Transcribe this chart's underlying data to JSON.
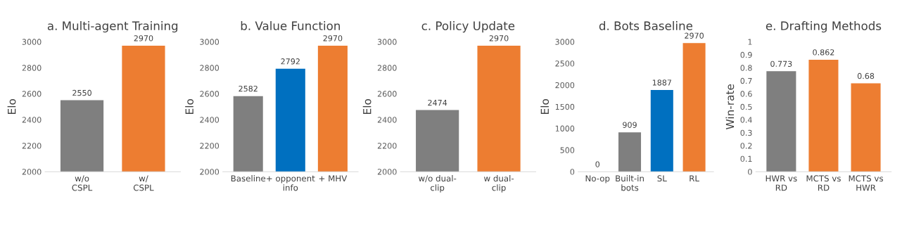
{
  "chart_data": [
    {
      "type": "bar",
      "title": "a. Multi-agent Training",
      "ylabel": "Elo",
      "categories": [
        "w/o\nCSPL",
        "w/\nCSPL"
      ],
      "values": [
        2550,
        2970
      ],
      "colors": [
        "#7f7f7f",
        "#ed7d31"
      ],
      "ylim": [
        2000,
        3000
      ],
      "yticks": [
        2000,
        2200,
        2400,
        2600,
        2800,
        3000
      ],
      "data_labels": true
    },
    {
      "type": "bar",
      "title": "b. Value Function",
      "ylabel": "Elo",
      "categories": [
        "Baseline",
        "+ opponent\ninfo",
        "+ MHV"
      ],
      "values": [
        2582,
        2792,
        2970
      ],
      "colors": [
        "#7f7f7f",
        "#0070c0",
        "#ed7d31"
      ],
      "ylim": [
        2000,
        3000
      ],
      "yticks": [
        2000,
        2200,
        2400,
        2600,
        2800,
        3000
      ],
      "data_labels": true
    },
    {
      "type": "bar",
      "title": "c. Policy Update",
      "ylabel": "Elo",
      "categories": [
        "w/o dual-\nclip",
        "w dual-\nclip"
      ],
      "values": [
        2474,
        2970
      ],
      "colors": [
        "#7f7f7f",
        "#ed7d31"
      ],
      "ylim": [
        2000,
        3000
      ],
      "yticks": [
        2000,
        2200,
        2400,
        2600,
        2800,
        3000
      ],
      "data_labels": true
    },
    {
      "type": "bar",
      "title": "d. Bots Baseline",
      "ylabel": "Elo",
      "categories": [
        "No-op",
        "Built-in\nbots",
        "SL",
        "RL"
      ],
      "values": [
        0,
        909,
        1887,
        2970
      ],
      "colors": [
        "#7f7f7f",
        "#7f7f7f",
        "#0070c0",
        "#ed7d31"
      ],
      "ylim": [
        0,
        3000
      ],
      "yticks": [
        0,
        500,
        1000,
        1500,
        2000,
        2500,
        3000
      ],
      "data_labels": true
    },
    {
      "type": "bar",
      "title": "e. Drafting Methods",
      "ylabel": "Win-rate",
      "categories": [
        "HWR vs\nRD",
        "MCTS vs\nRD",
        "MCTS vs\nHWR"
      ],
      "values": [
        0.773,
        0.862,
        0.68
      ],
      "colors": [
        "#7f7f7f",
        "#ed7d31",
        "#ed7d31"
      ],
      "ylim": [
        0,
        1
      ],
      "yticks": [
        0,
        0.1,
        0.2,
        0.3,
        0.4,
        0.5,
        0.6,
        0.7,
        0.8,
        0.9,
        1
      ],
      "data_labels": true
    }
  ]
}
